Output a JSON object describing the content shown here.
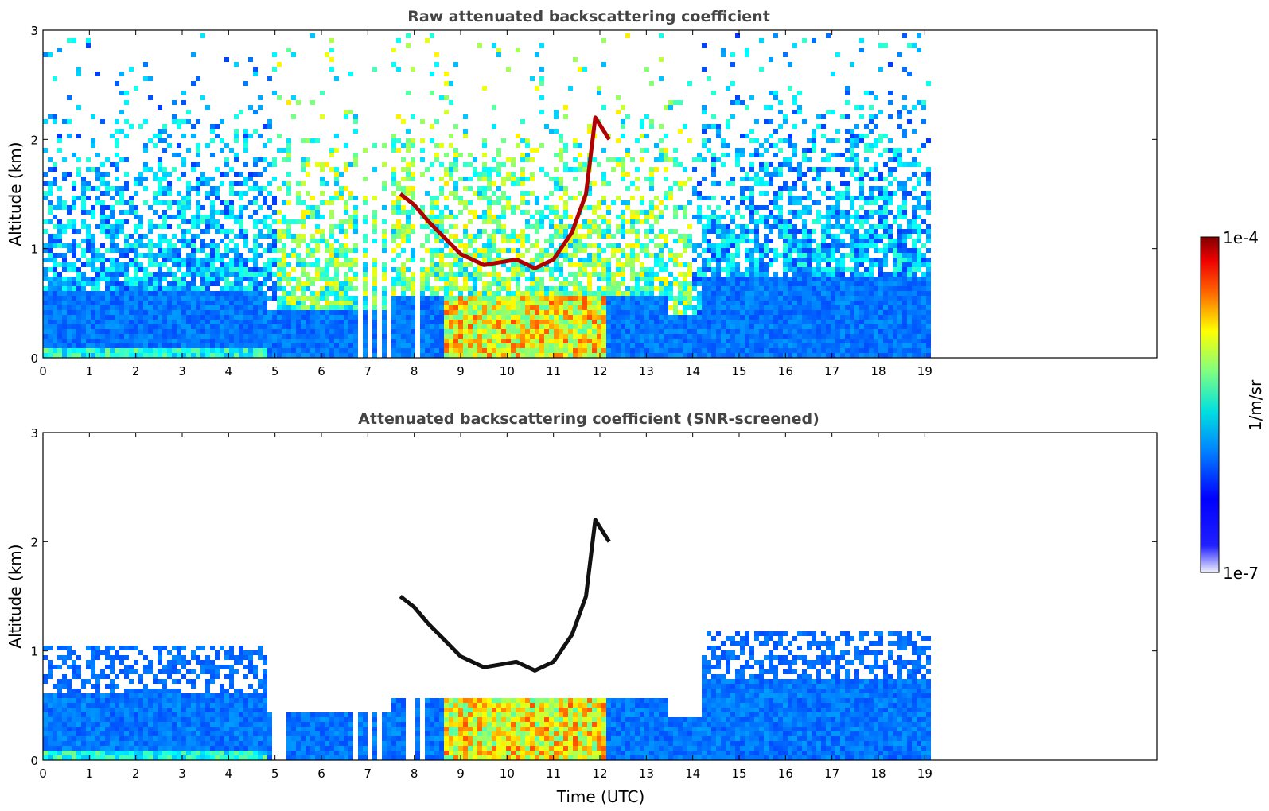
{
  "chart_data": [
    {
      "type": "heatmap",
      "title": "Raw attenuated backscattering coefficient",
      "xlabel": "",
      "ylabel": "Altitude (km)",
      "xlim": [
        0,
        24
      ],
      "ylim": [
        0,
        3
      ],
      "x_ticks": [
        "0",
        "1",
        "2",
        "3",
        "4",
        "5",
        "6",
        "7",
        "8",
        "9",
        "10",
        "11",
        "12",
        "13",
        "14",
        "15",
        "16",
        "17",
        "18",
        "19"
      ],
      "y_ticks": [
        "0",
        "1",
        "2",
        "3"
      ],
      "data_extent_hours": [
        0,
        19.15
      ],
      "screened": false,
      "cloud_layer_km": [
        {
          "x": 7.7,
          "y": 1.5
        },
        {
          "x": 8.0,
          "y": 1.4
        },
        {
          "x": 8.3,
          "y": 1.25
        },
        {
          "x": 9.0,
          "y": 0.95
        },
        {
          "x": 9.5,
          "y": 0.85
        },
        {
          "x": 10.2,
          "y": 0.9
        },
        {
          "x": 10.6,
          "y": 0.82
        },
        {
          "x": 11.0,
          "y": 0.9
        },
        {
          "x": 11.4,
          "y": 1.15
        },
        {
          "x": 11.7,
          "y": 1.5
        },
        {
          "x": 11.9,
          "y": 2.2
        },
        {
          "x": 12.2,
          "y": 2.0
        }
      ]
    },
    {
      "type": "heatmap",
      "title": "Attenuated backscattering coefficient (SNR-screened)",
      "xlabel": "Time (UTC)",
      "ylabel": "Altitude (km)",
      "xlim": [
        0,
        24
      ],
      "ylim": [
        0,
        3
      ],
      "x_ticks": [
        "0",
        "1",
        "2",
        "3",
        "4",
        "5",
        "6",
        "7",
        "8",
        "9",
        "10",
        "11",
        "12",
        "13",
        "14",
        "15",
        "16",
        "17",
        "18",
        "19"
      ],
      "y_ticks": [
        "0",
        "1",
        "2",
        "3"
      ],
      "data_extent_hours": [
        0,
        19.15
      ],
      "screened": true,
      "cloud_layer_km": [
        {
          "x": 7.7,
          "y": 1.5
        },
        {
          "x": 8.0,
          "y": 1.4
        },
        {
          "x": 8.3,
          "y": 1.25
        },
        {
          "x": 9.0,
          "y": 0.95
        },
        {
          "x": 9.5,
          "y": 0.85
        },
        {
          "x": 10.2,
          "y": 0.9
        },
        {
          "x": 10.6,
          "y": 0.82
        },
        {
          "x": 11.0,
          "y": 0.9
        },
        {
          "x": 11.4,
          "y": 1.15
        },
        {
          "x": 11.7,
          "y": 1.5
        },
        {
          "x": 11.9,
          "y": 2.2
        },
        {
          "x": 12.2,
          "y": 2.0
        }
      ]
    }
  ],
  "colorbar": {
    "max_label": "1e-4",
    "min_label": "1e-7",
    "unit_label": "1/m/sr",
    "colormap": "jet",
    "scale": "log"
  }
}
